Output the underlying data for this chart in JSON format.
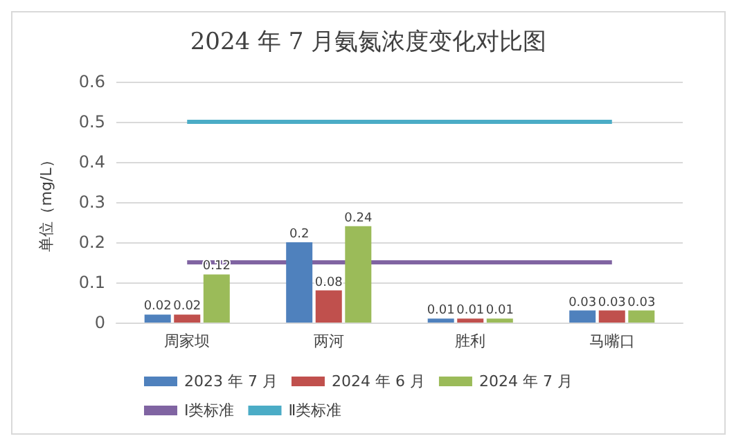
{
  "chart_data": {
    "type": "bar",
    "title": "2024 年 7 月氨氮浓度变化对比图",
    "ylabel": "单位（mg/L）",
    "categories": [
      "周家坝",
      "两河",
      "胜利",
      "马嘴口"
    ],
    "series": [
      {
        "name": "2023 年 7 月",
        "color": "#4f81bd",
        "values": [
          0.02,
          0.2,
          0.01,
          0.03
        ],
        "value_labels": [
          "0.02",
          "0.2",
          "0.01",
          "0.03"
        ]
      },
      {
        "name": "2024 年 6 月",
        "color": "#c0504d",
        "values": [
          0.02,
          0.08,
          0.01,
          0.03
        ],
        "value_labels": [
          "0.02",
          "0.08",
          "0.01",
          "0.03"
        ]
      },
      {
        "name": "2024 年 7 月",
        "color": "#9bbb59",
        "values": [
          0.12,
          0.24,
          0.01,
          0.03
        ],
        "value_labels": [
          "0.12",
          "0.24",
          "0.01",
          "0.03"
        ]
      },
      {
        "name": "I类标准",
        "type": "line",
        "color": "#8064a2",
        "values": [
          0.15,
          0.15,
          0.15,
          0.15
        ]
      },
      {
        "name": "Ⅱ类标准",
        "type": "line",
        "color": "#4bacc6",
        "values": [
          0.5,
          0.5,
          0.5,
          0.5
        ]
      }
    ],
    "ylim": [
      0,
      0.6
    ],
    "yticks": [
      0,
      0.1,
      0.2,
      0.3,
      0.4,
      0.5,
      0.6
    ],
    "grid": "y",
    "legend": "bottom",
    "line_style": "solid"
  }
}
